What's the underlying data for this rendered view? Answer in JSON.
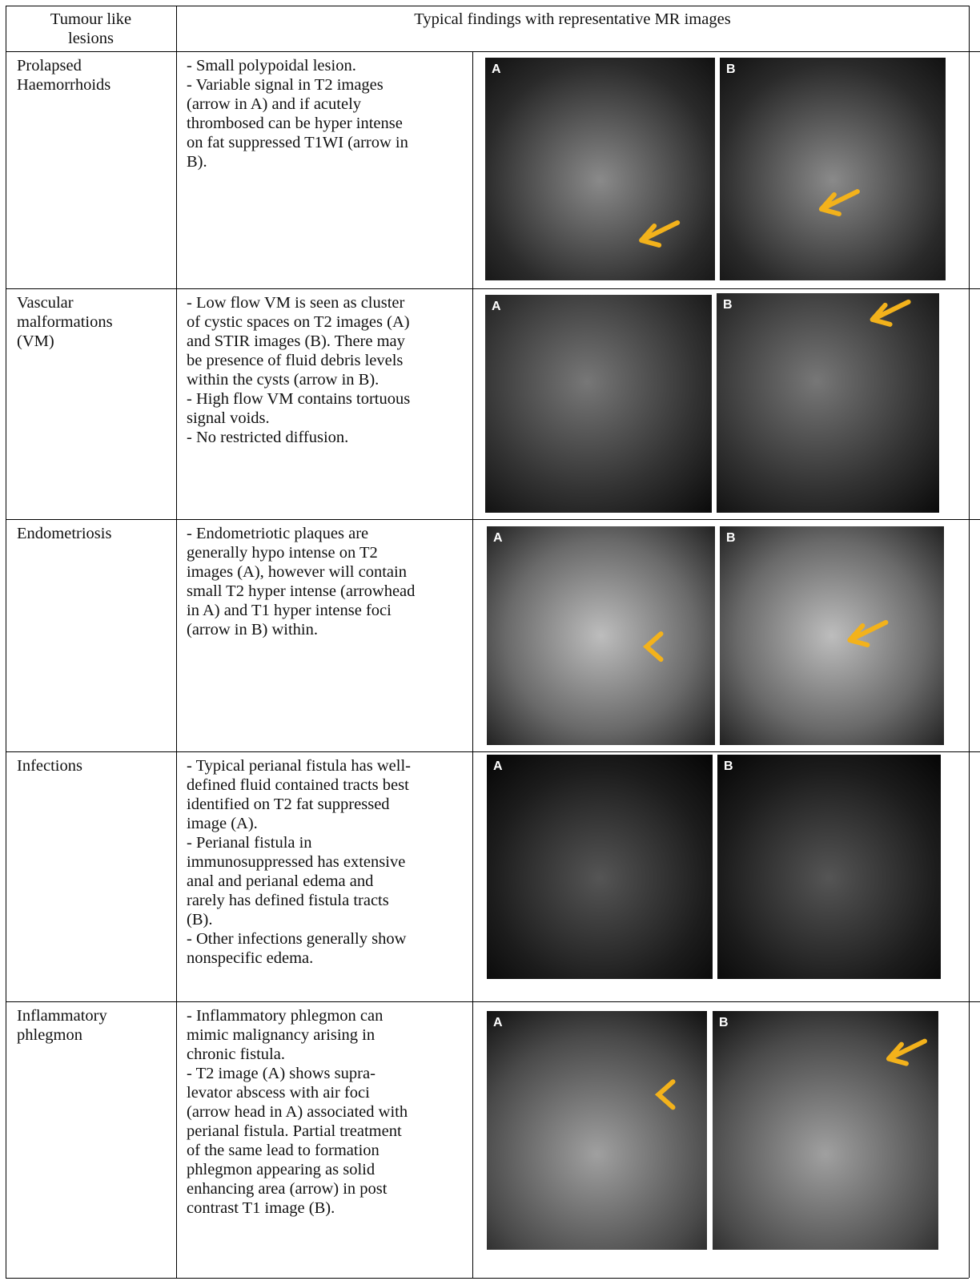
{
  "table": {
    "header": {
      "col1": [
        "Tumour like",
        "lesions"
      ],
      "col2": "Typical findings with representative MR images"
    },
    "rows": [
      {
        "lesion": [
          "Prolapsed",
          "Haemorrhoids"
        ],
        "findings": [
          "- Small polypoidal lesion.",
          "- Variable signal in T2 images",
          "(arrow in A) and if acutely",
          "thrombosed can be hyper intense",
          "on fat suppressed T1WI (arrow in",
          "B)."
        ],
        "images": [
          "A",
          "B"
        ]
      },
      {
        "lesion": [
          "Vascular",
          "malformations",
          "(VM)"
        ],
        "findings": [
          "- Low flow VM is seen as cluster",
          "of cystic spaces on T2 images (A)",
          "and STIR images (B). There may",
          "be presence of fluid debris levels",
          "within the cysts (arrow in B).",
          "- High flow VM contains tortuous",
          "signal voids.",
          "- No restricted diffusion."
        ],
        "images": [
          "A",
          "B"
        ]
      },
      {
        "lesion": [
          "Endometriosis"
        ],
        "findings": [
          "- Endometriotic plaques are",
          "generally hypo intense on T2",
          "images (A), however will contain",
          "small T2 hyper intense (arrowhead",
          "in A) and T1 hyper intense foci",
          "(arrow in B) within."
        ],
        "images": [
          "A",
          "B"
        ]
      },
      {
        "lesion": [
          "Infections"
        ],
        "findings": [
          "- Typical perianal fistula has well-",
          "defined fluid contained tracts best",
          "identified on T2 fat suppressed",
          "image (A).",
          "- Perianal fistula in",
          "immunosuppressed has extensive",
          "anal and perianal edema and",
          "rarely has defined fistula tracts",
          "(B).",
          "- Other infections generally show",
          "nonspecific edema."
        ],
        "images": [
          "A",
          "B"
        ]
      },
      {
        "lesion": [
          "Inflammatory",
          "phlegmon"
        ],
        "findings": [
          "- Inflammatory phlegmon can",
          "mimic malignancy arising in",
          "chronic fistula.",
          "- T2 image (A) shows supra-",
          "levator abscess with air foci",
          "(arrow head in A) associated with",
          "perianal fistula. Partial treatment",
          "of the same lead to formation",
          "phlegmon appearing as solid",
          "enhancing area (arrow)  in post",
          "contrast T1 image (B)."
        ],
        "images": [
          "A",
          "B"
        ]
      }
    ]
  }
}
